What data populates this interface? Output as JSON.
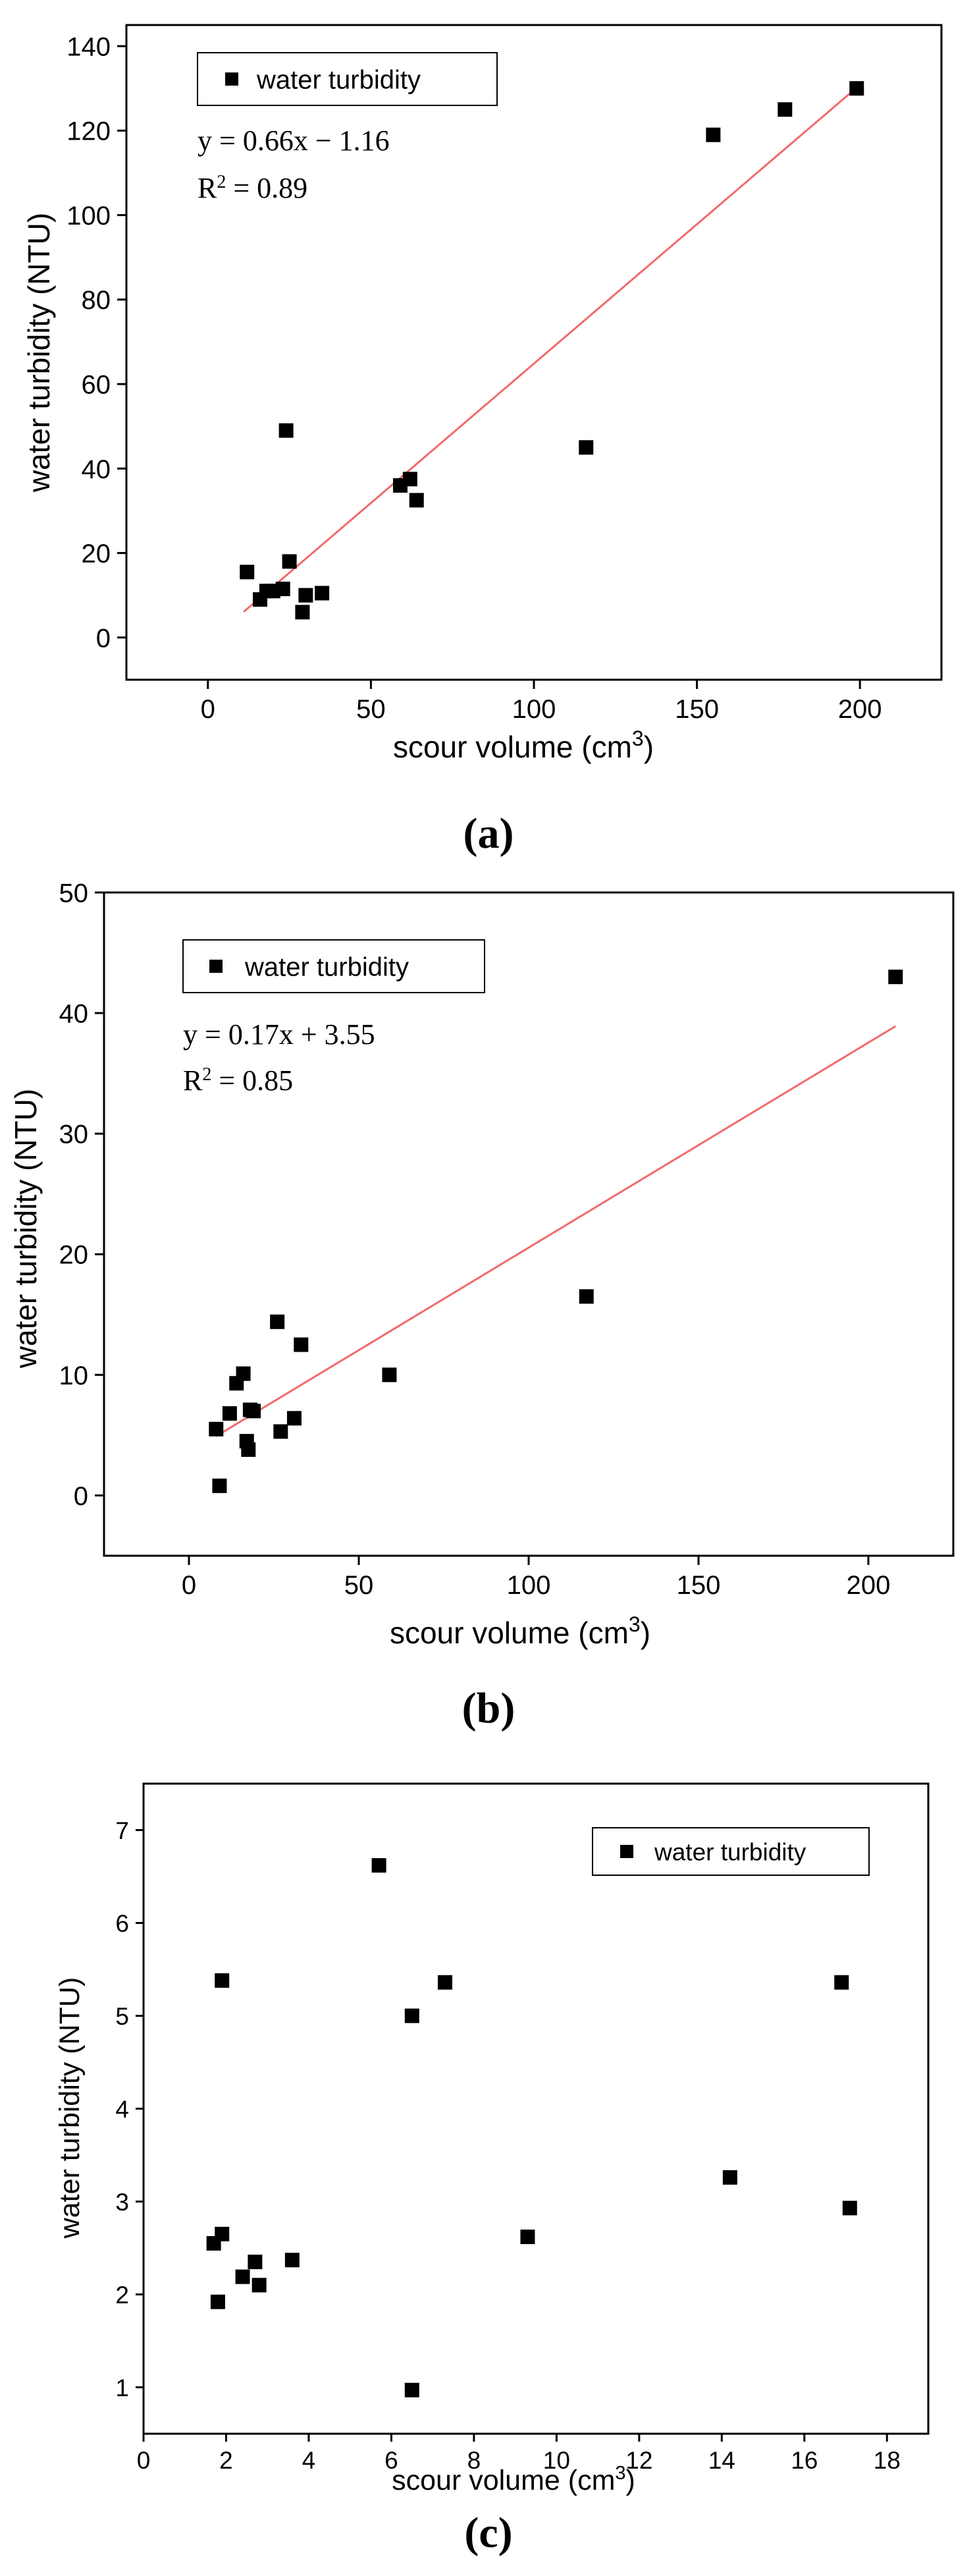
{
  "figure": {
    "captions": [
      "(a)",
      "(b)",
      "(c)"
    ]
  },
  "chart_data": [
    {
      "panel": "a",
      "type": "scatter",
      "xlabel": "scour volume (cm3)",
      "ylabel": "water turbidity (NTU)",
      "xlim": [
        -25,
        225
      ],
      "ylim": [
        -10,
        145
      ],
      "xticks": [
        0,
        50,
        100,
        150,
        200
      ],
      "yticks": [
        0,
        20,
        40,
        60,
        80,
        100,
        120,
        140
      ],
      "legend": {
        "label": "water turbidity",
        "placement": "top-left"
      },
      "equation": "y = 0.66x − 1.16",
      "r_squared_label": "R",
      "r_squared_value": "= 0.89",
      "marker_color": "#000000",
      "fit_color": "#f26a6a",
      "series": [
        {
          "name": "water turbidity",
          "points": [
            [
              12,
              15.5
            ],
            [
              16,
              9
            ],
            [
              18,
              11
            ],
            [
              20,
              11
            ],
            [
              23,
              11.5
            ],
            [
              25,
              18
            ],
            [
              24,
              49
            ],
            [
              29,
              6
            ],
            [
              30,
              10
            ],
            [
              35,
              10.5
            ],
            [
              59,
              36
            ],
            [
              62,
              37.5
            ],
            [
              64,
              32.5
            ],
            [
              116,
              45
            ],
            [
              155,
              119
            ],
            [
              177,
              125
            ],
            [
              199,
              130
            ]
          ]
        }
      ],
      "fit_line": {
        "slope": 0.66,
        "intercept": -1.16,
        "x_range": [
          11,
          199
        ]
      }
    },
    {
      "panel": "b",
      "type": "scatter",
      "xlabel": "scour volume (cm3)",
      "ylabel": "water turbidity (NTU)",
      "xlim": [
        -25,
        225
      ],
      "ylim": [
        -5,
        50
      ],
      "xticks": [
        0,
        50,
        100,
        150,
        200
      ],
      "yticks": [
        0,
        10,
        20,
        30,
        40,
        50
      ],
      "legend": {
        "label": "water turbidity",
        "placement": "top-left"
      },
      "equation": "y = 0.17x + 3.55",
      "r_squared_label": "R",
      "r_squared_value": "= 0.85",
      "marker_color": "#000000",
      "fit_color": "#f26a6a",
      "series": [
        {
          "name": "water turbidity",
          "points": [
            [
              8,
              5.5
            ],
            [
              9,
              0.8
            ],
            [
              12,
              6.8
            ],
            [
              14,
              9.3
            ],
            [
              16,
              10.1
            ],
            [
              17,
              4.5
            ],
            [
              17.5,
              3.8
            ],
            [
              18,
              7.1
            ],
            [
              19,
              7
            ],
            [
              26,
              14.4
            ],
            [
              27,
              5.3
            ],
            [
              31,
              6.4
            ],
            [
              33,
              12.5
            ],
            [
              59,
              10
            ],
            [
              117,
              16.5
            ],
            [
              208,
              43
            ]
          ]
        }
      ],
      "fit_line": {
        "slope": 0.17,
        "intercept": 3.55,
        "x_range": [
          8,
          208
        ]
      }
    },
    {
      "panel": "c",
      "type": "scatter",
      "xlabel": "scour volume (cm3)",
      "ylabel": "water turbidity (NTU)",
      "xlim": [
        0,
        19
      ],
      "ylim": [
        0.5,
        7.5
      ],
      "xticks": [
        0,
        2,
        4,
        6,
        8,
        10,
        12,
        14,
        16,
        18
      ],
      "yticks": [
        1,
        2,
        3,
        4,
        5,
        6,
        7
      ],
      "legend": {
        "label": "water turbidity",
        "placement": "top-right"
      },
      "marker_color": "#000000",
      "series": [
        {
          "name": "water turbidity",
          "points": [
            [
              1.7,
              2.55
            ],
            [
              1.8,
              1.92
            ],
            [
              1.9,
              5.38
            ],
            [
              1.9,
              2.65
            ],
            [
              2.4,
              2.19
            ],
            [
              2.7,
              2.35
            ],
            [
              2.8,
              2.1
            ],
            [
              3.6,
              2.37
            ],
            [
              5.7,
              6.62
            ],
            [
              6.5,
              5
            ],
            [
              6.5,
              0.97
            ],
            [
              7.3,
              5.36
            ],
            [
              9.3,
              2.62
            ],
            [
              14.2,
              3.26
            ],
            [
              16.9,
              5.36
            ],
            [
              17.1,
              2.93
            ]
          ]
        }
      ]
    }
  ]
}
